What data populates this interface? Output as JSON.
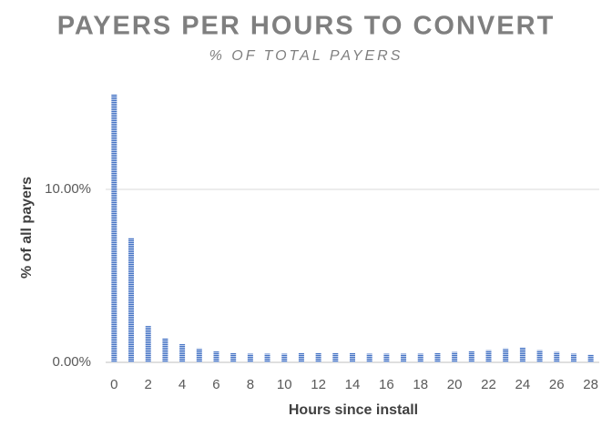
{
  "chart_data": {
    "type": "bar",
    "title": "PAYERS PER HOURS TO CONVERT",
    "subtitle": "% OF TOTAL PAYERS",
    "x_label": "Hours since install",
    "y_label": "% of all payers",
    "categories": [
      "0",
      null,
      "2",
      null,
      "4",
      null,
      "6",
      null,
      "8",
      null,
      "10",
      null,
      "12",
      null,
      "14",
      null,
      "16",
      null,
      "18",
      null,
      "20",
      null,
      "22",
      null,
      "24",
      null,
      "26",
      null,
      "28"
    ],
    "values": [
      15.5,
      7.2,
      2.1,
      1.4,
      1.05,
      0.8,
      0.63,
      0.53,
      0.5,
      0.5,
      0.5,
      0.55,
      0.55,
      0.55,
      0.55,
      0.5,
      0.5,
      0.5,
      0.5,
      0.55,
      0.6,
      0.65,
      0.7,
      0.8,
      0.85,
      0.7,
      0.6,
      0.5,
      0.45
    ],
    "color": "#4472c4",
    "ylim": [
      0,
      16
    ],
    "yticks": [
      {
        "value": 0,
        "label": "0.00%"
      },
      {
        "value": 10,
        "label": "10.00%"
      }
    ],
    "grid": true
  }
}
